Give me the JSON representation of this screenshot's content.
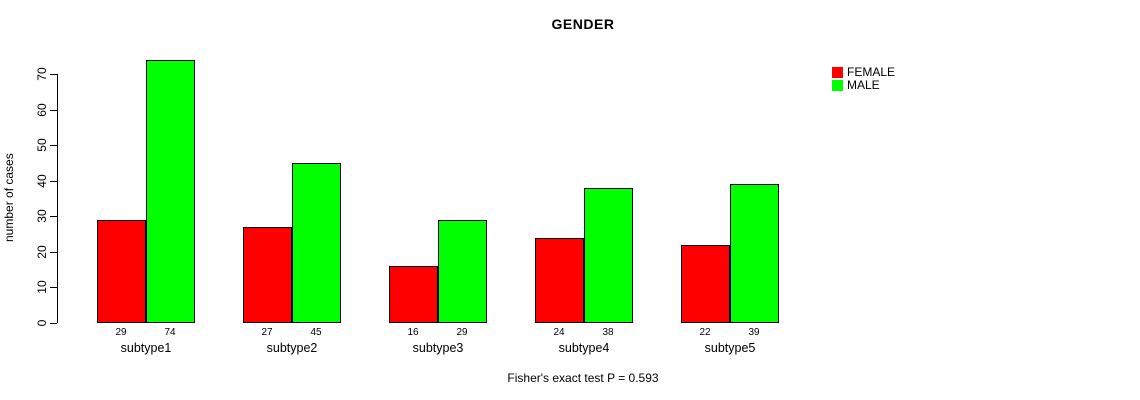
{
  "title": "GENDER",
  "ylabel": "number of cases",
  "footer": "Fisher's exact test P = 0.593",
  "legend": {
    "items": [
      {
        "label": "FEMALE",
        "color": "#FF0000"
      },
      {
        "label": "MALE",
        "color": "#00FF00"
      }
    ]
  },
  "chart_data": {
    "type": "bar",
    "title": "GENDER",
    "xlabel": "",
    "ylabel": "number of cases",
    "categories": [
      "subtype1",
      "subtype2",
      "subtype3",
      "subtype4",
      "subtype5"
    ],
    "series": [
      {
        "name": "FEMALE",
        "color": "#FF0000",
        "values": [
          29,
          27,
          16,
          24,
          22
        ]
      },
      {
        "name": "MALE",
        "color": "#00FF00",
        "values": [
          74,
          45,
          29,
          38,
          39
        ]
      }
    ],
    "yticks": [
      0,
      10,
      20,
      30,
      40,
      50,
      60,
      70
    ],
    "ylim": [
      0,
      70
    ],
    "grid": false,
    "bar_borders": true,
    "show_value_labels": true,
    "legend_position": "top-right",
    "annotation": "Fisher's exact test P = 0.593"
  }
}
